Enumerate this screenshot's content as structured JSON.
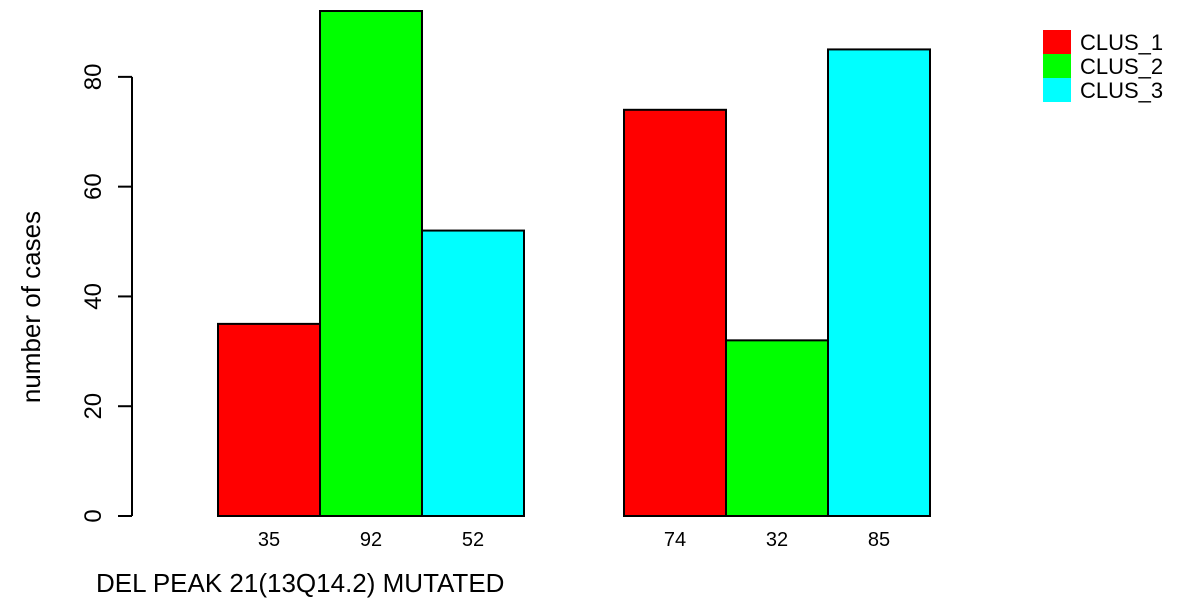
{
  "chart_data": {
    "type": "bar",
    "title": "",
    "xlabel": "DEL PEAK 21(13Q14.2) MUTATED",
    "ylabel": "number of cases",
    "ylim": [
      0,
      92
    ],
    "yticks": [
      0,
      20,
      40,
      60,
      80
    ],
    "grid": false,
    "legend_position": "top-right",
    "series": [
      {
        "name": "CLUS_1",
        "color": "#FF0000",
        "values": [
          35,
          74
        ]
      },
      {
        "name": "CLUS_2",
        "color": "#00FF00",
        "values": [
          92,
          32
        ]
      },
      {
        "name": "CLUS_3",
        "color": "#00FFFF",
        "values": [
          52,
          85
        ]
      }
    ],
    "categories": [
      "",
      ""
    ],
    "bar_labels": [
      [
        "35",
        "92",
        "52"
      ],
      [
        "74",
        "32",
        "85"
      ]
    ]
  }
}
